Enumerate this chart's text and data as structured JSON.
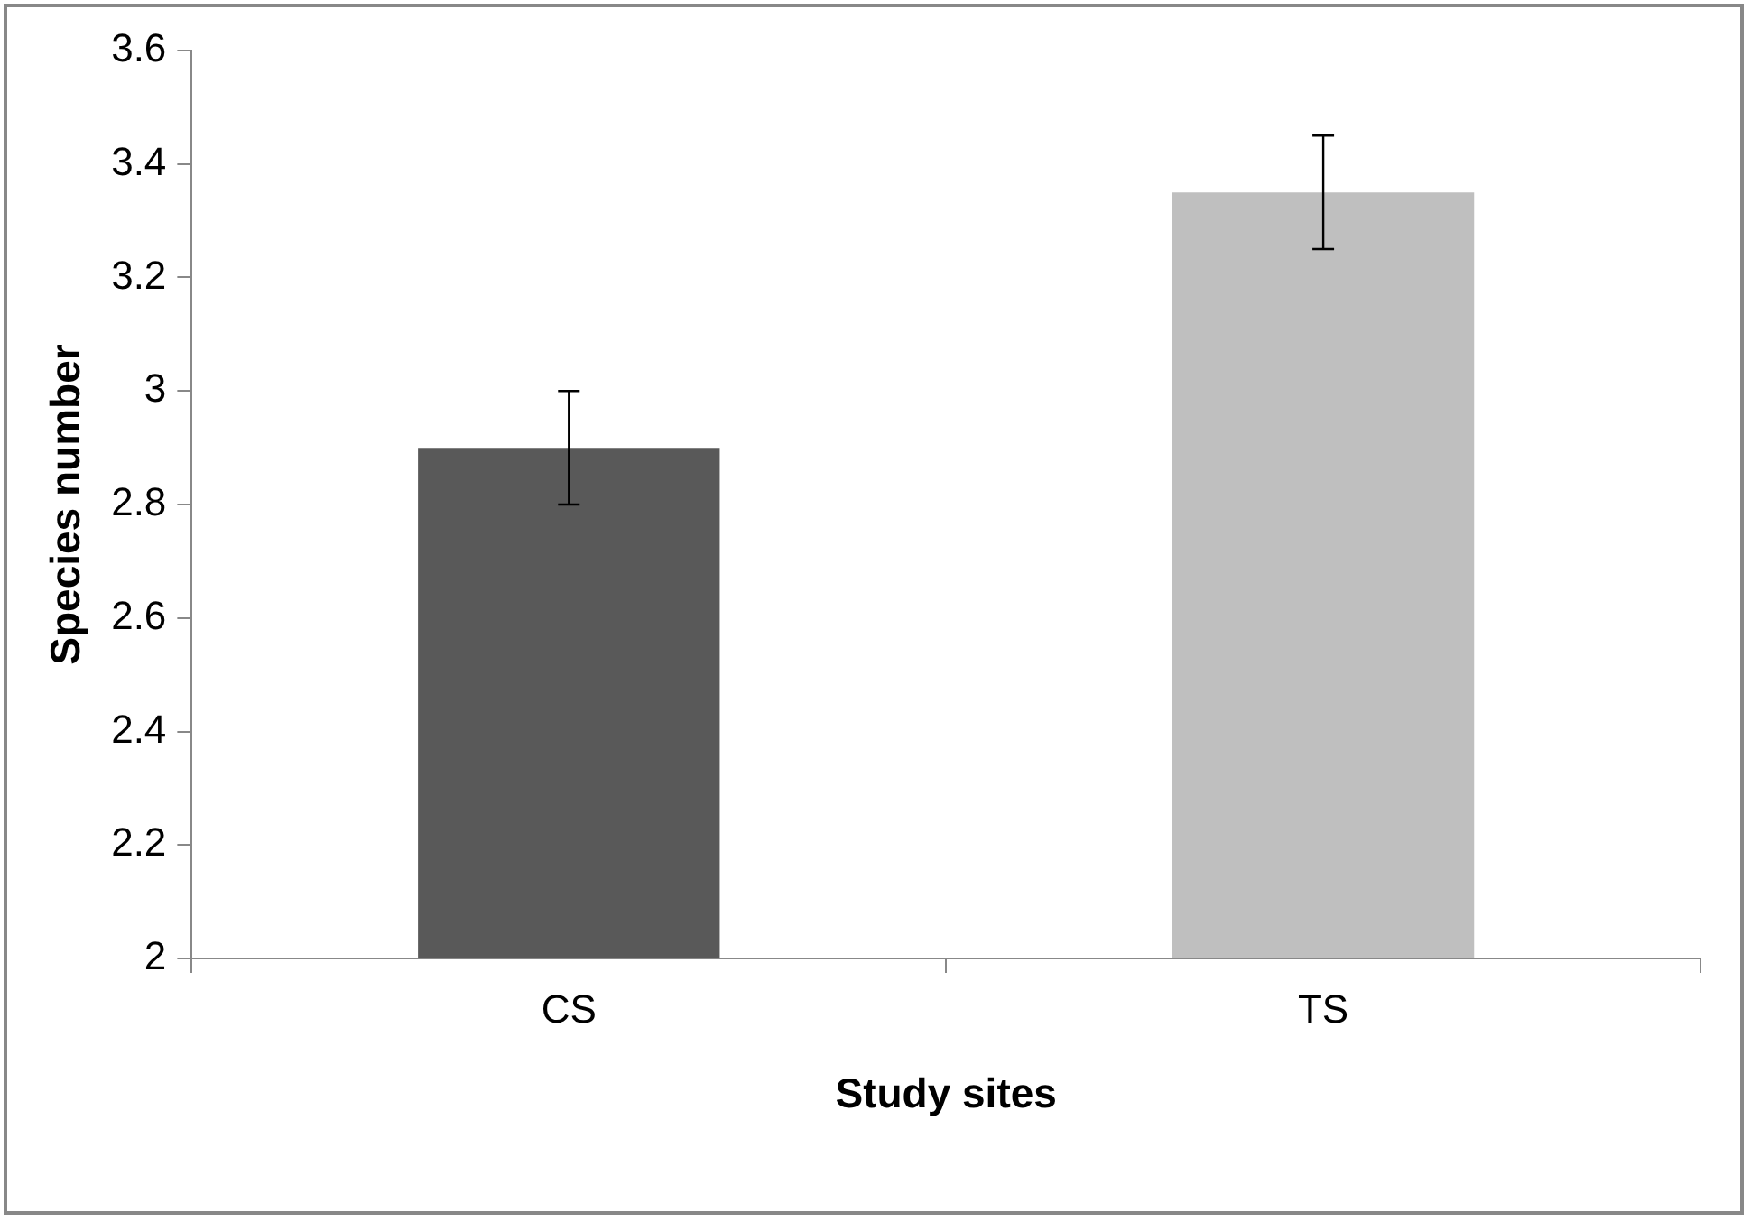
{
  "chart_data": {
    "type": "bar",
    "xlabel": "Study sites",
    "ylabel": "Species number",
    "categories": [
      "CS",
      "TS"
    ],
    "series": [
      {
        "colors": [
          "#595959",
          "#bfbfbf"
        ],
        "values": [
          2.9,
          3.35
        ],
        "errors": [
          0.1,
          0.1
        ]
      }
    ],
    "ylim": [
      2,
      3.6
    ],
    "yticks": [
      2,
      2.2,
      2.4,
      2.6,
      2.8,
      3,
      3.2,
      3.4,
      3.6
    ],
    "grid": false,
    "legend": false
  }
}
